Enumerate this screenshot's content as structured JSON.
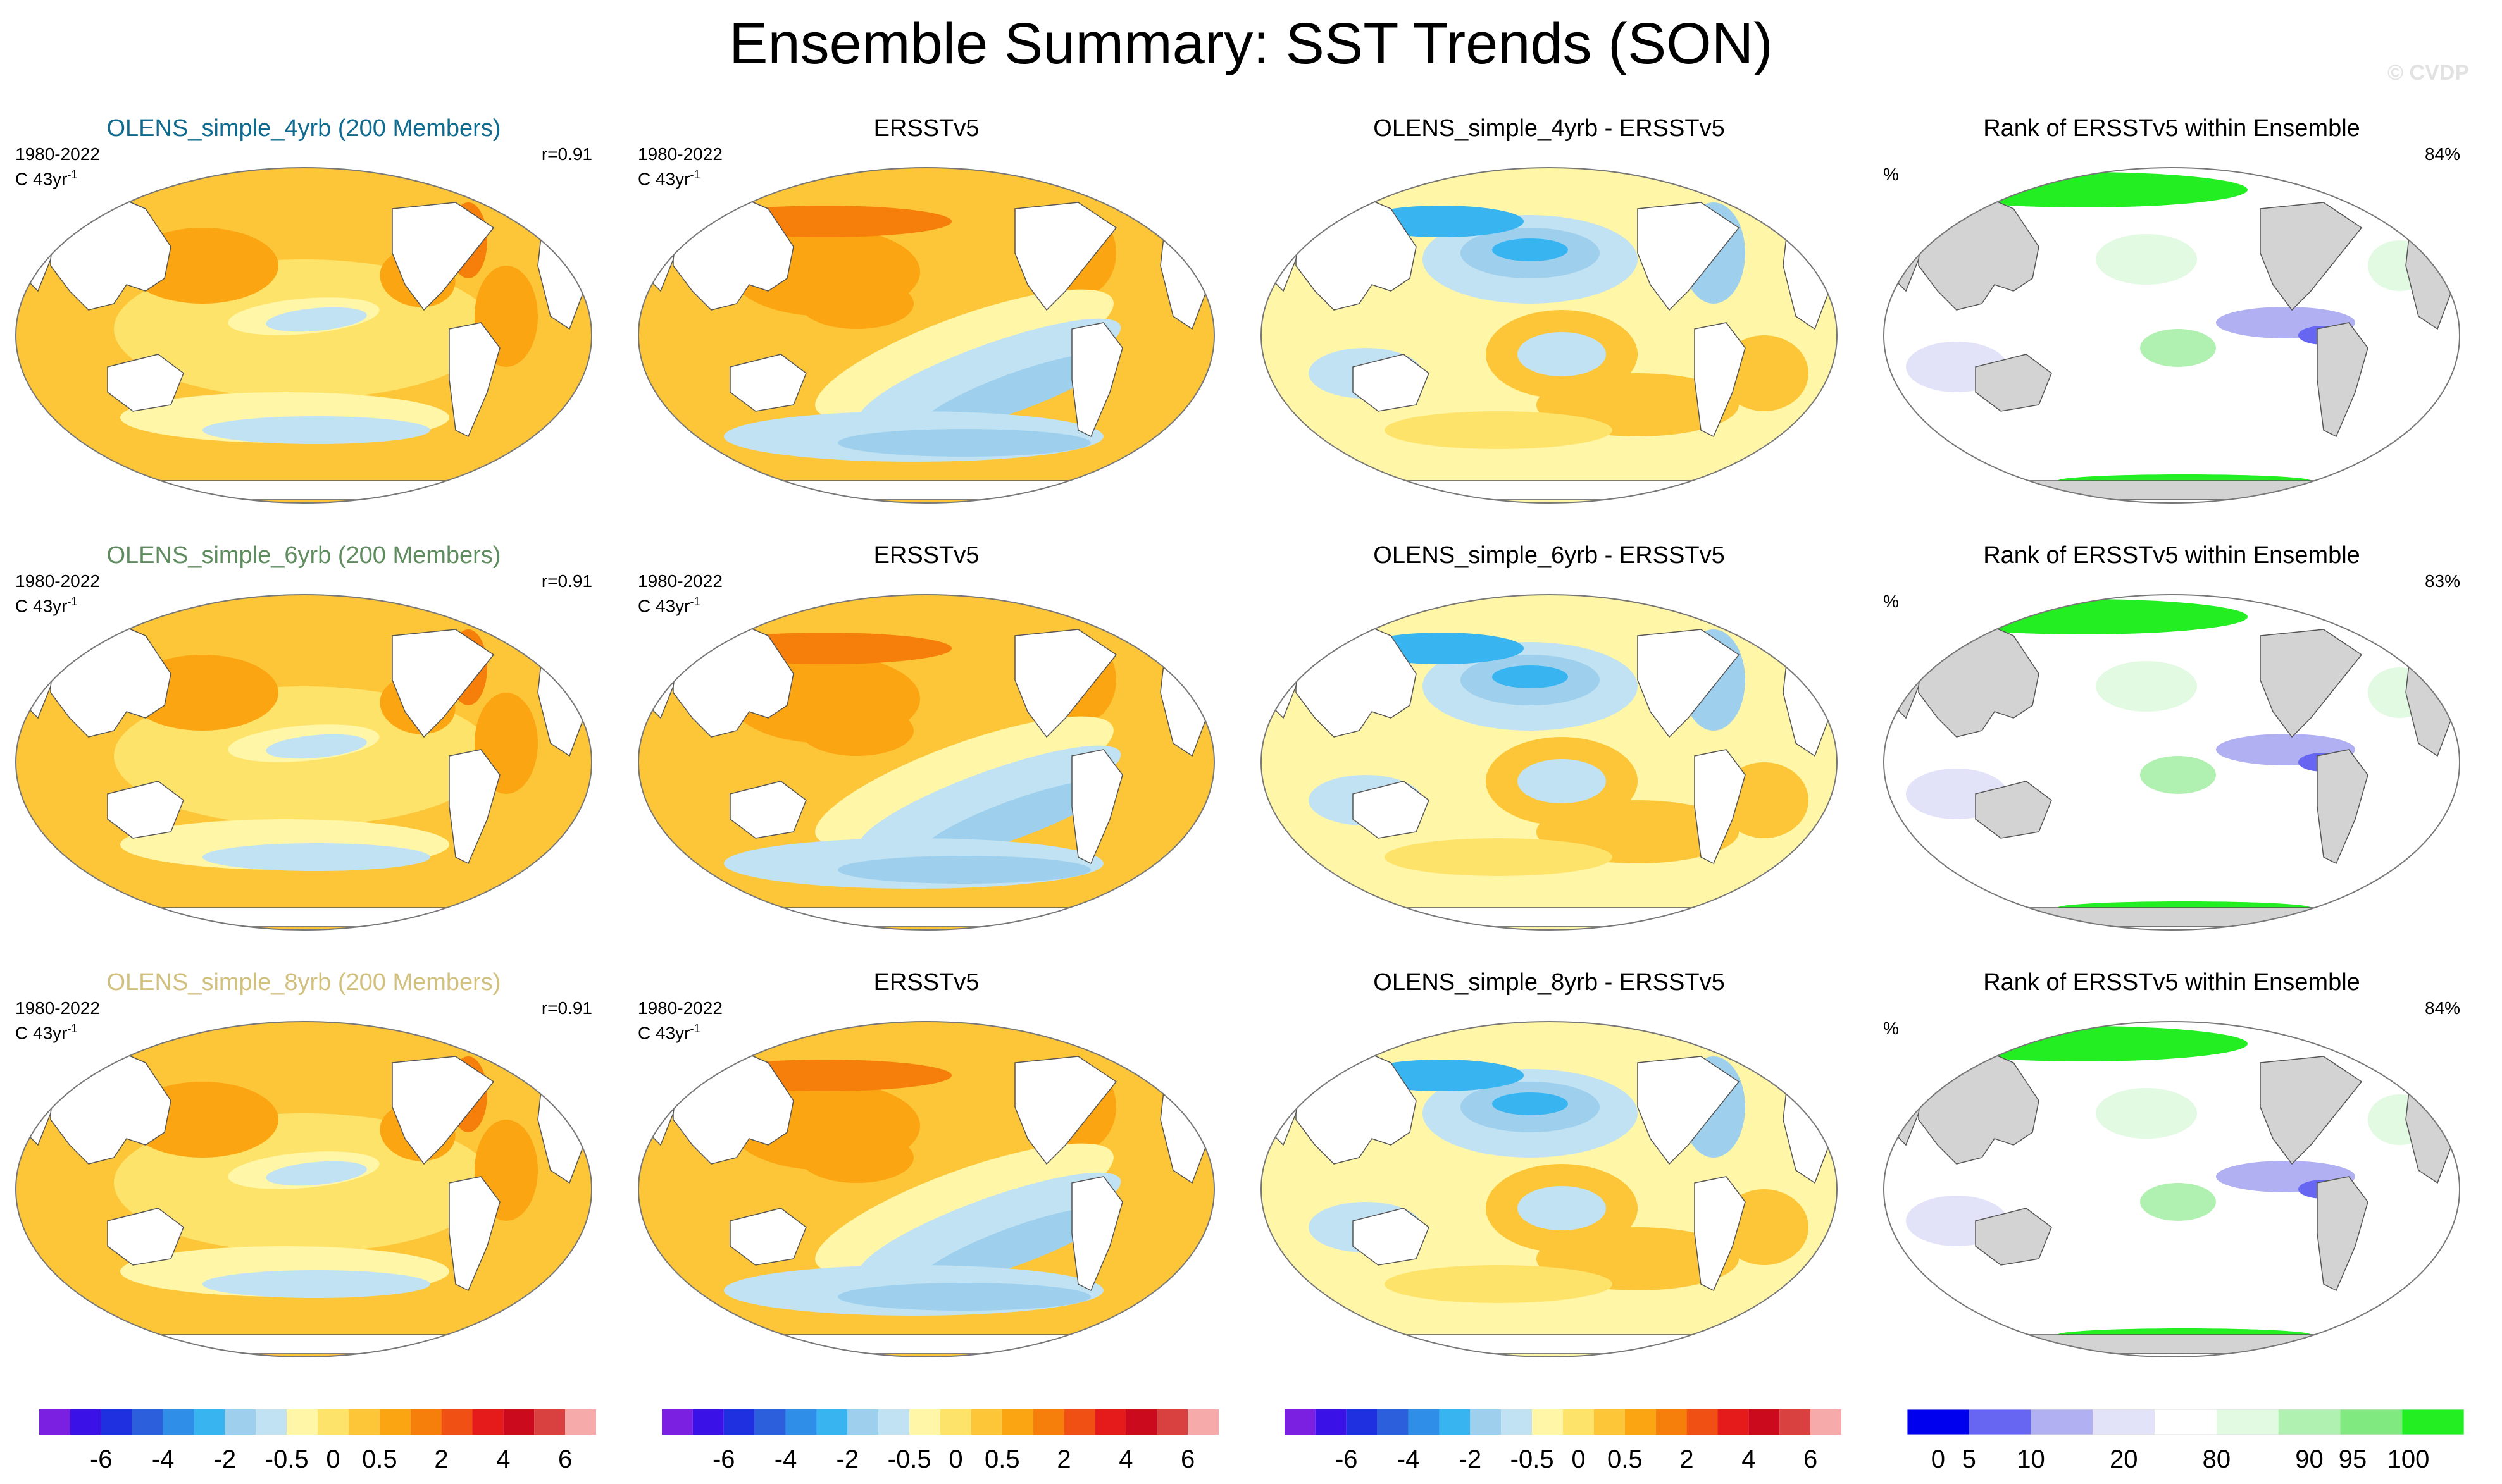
{
  "title": "Ensemble Summary: SST Trends (SON)",
  "copyright": "© CVDP",
  "colors": {
    "sst_scale": [
      "#7b1fe0",
      "#3a12e8",
      "#1f30e0",
      "#2b5fdc",
      "#2f8ee8",
      "#38b4f0",
      "#9ed0ee",
      "#c0e2f2",
      "#fff6a8",
      "#fde36a",
      "#fcc638",
      "#fba512",
      "#f67e0a",
      "#f05014",
      "#e51a1a",
      "#cc0a1e",
      "#d94040",
      "#f7aaaa"
    ],
    "rank_scale": [
      "#0000ee",
      "#6666f2",
      "#b0b0f2",
      "#e2e2f8",
      "#ffffff",
      "#e2fae2",
      "#b0f0b0",
      "#80ea80",
      "#22ee22"
    ],
    "land_rank": "#d3d3d3"
  },
  "rows": [
    {
      "model": {
        "title": "OLENS_simple_4yrb (200 Members)",
        "title_color": "#0e6a8e",
        "period": "1980-2022",
        "units": "C 43yr",
        "units_sup": "-1",
        "corr": "r=0.91"
      },
      "obs": {
        "title": "ERSSTv5",
        "period": "1980-2022",
        "units": "C 43yr",
        "units_sup": "-1"
      },
      "diff": {
        "title": "OLENS_simple_4yrb - ERSSTv5"
      },
      "rank": {
        "title": "Rank of ERSSTv5 within Ensemble",
        "percent_label": "%",
        "value": "84%"
      }
    },
    {
      "model": {
        "title": "OLENS_simple_6yrb (200 Members)",
        "title_color": "#5e8c5e",
        "period": "1980-2022",
        "units": "C 43yr",
        "units_sup": "-1",
        "corr": "r=0.91"
      },
      "obs": {
        "title": "ERSSTv5",
        "period": "1980-2022",
        "units": "C 43yr",
        "units_sup": "-1"
      },
      "diff": {
        "title": "OLENS_simple_6yrb - ERSSTv5"
      },
      "rank": {
        "title": "Rank of ERSSTv5 within Ensemble",
        "percent_label": "%",
        "value": "83%"
      }
    },
    {
      "model": {
        "title": "OLENS_simple_8yrb (200 Members)",
        "title_color": "#d2c17e",
        "period": "1980-2022",
        "units": "C 43yr",
        "units_sup": "-1",
        "corr": "r=0.91"
      },
      "obs": {
        "title": "ERSSTv5",
        "period": "1980-2022",
        "units": "C 43yr",
        "units_sup": "-1"
      },
      "diff": {
        "title": "OLENS_simple_8yrb - ERSSTv5"
      },
      "rank": {
        "title": "Rank of ERSSTv5 within Ensemble",
        "percent_label": "%",
        "value": "84%"
      }
    }
  ],
  "chart_data": [
    {
      "type": "heatmap",
      "title": "Ensemble Summary: SST Trends (SON)",
      "projection": "Robinson (Pacific-centered global map)",
      "season": "SON",
      "period": "1980-2022",
      "units": "C 43yr-1",
      "panels": [
        "OLENS_simple_4yrb (200 Members)",
        "ERSSTv5",
        "OLENS_simple_4yrb - ERSSTv5",
        "Rank of ERSSTv5 within Ensemble",
        "OLENS_simple_6yrb (200 Members)",
        "ERSSTv5",
        "OLENS_simple_6yrb - ERSSTv5",
        "Rank of ERSSTv5 within Ensemble",
        "OLENS_simple_8yrb (200 Members)",
        "ERSSTv5",
        "OLENS_simple_8yrb - ERSSTv5",
        "Rank of ERSSTv5 within Ensemble"
      ],
      "pattern_correlations": [
        0.91,
        0.91,
        0.91
      ],
      "rank_percent": [
        84,
        83,
        84
      ]
    },
    {
      "type": "colorbar",
      "name": "SST trend / difference scale",
      "tick_labels": [
        "-6",
        "-4",
        "-2",
        "-0.5",
        "0",
        "0.5",
        "2",
        "4",
        "6"
      ],
      "levels": [
        -6,
        -5,
        -4,
        -3,
        -2,
        -1,
        -0.5,
        -0.25,
        0,
        0.25,
        0.5,
        1,
        2,
        3,
        4,
        5,
        6
      ]
    },
    {
      "type": "colorbar",
      "name": "Rank scale (%)",
      "tick_labels": [
        "0",
        "5",
        "10",
        "20",
        "80",
        "90",
        "95",
        "100"
      ],
      "levels": [
        0,
        5,
        10,
        20,
        80,
        90,
        95,
        100
      ]
    }
  ]
}
